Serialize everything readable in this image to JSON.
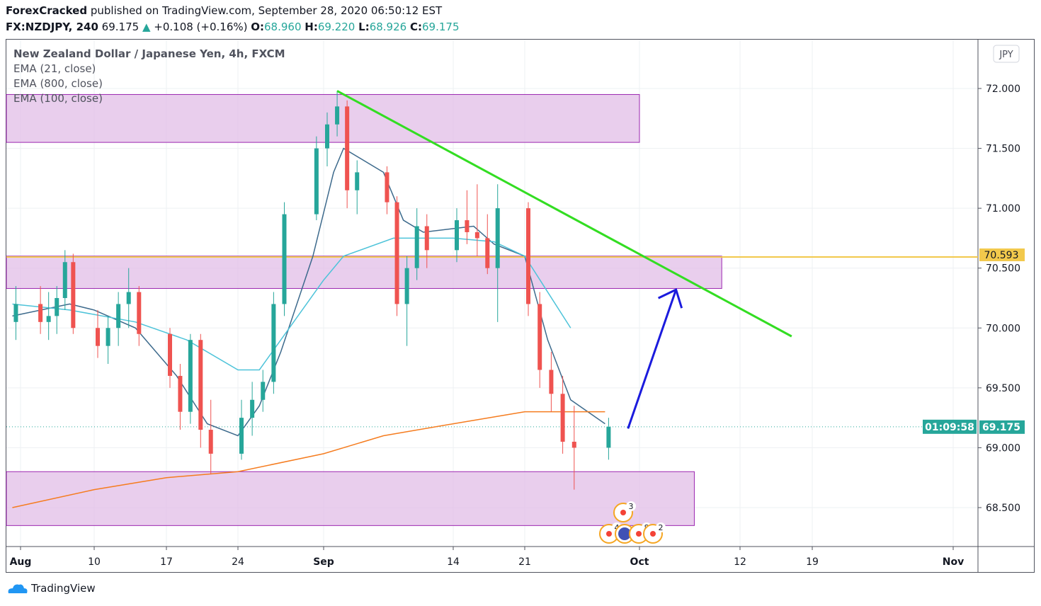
{
  "header": {
    "author": "ForexCracked",
    "published": "published on TradingView.com, September 28, 2020 06:50:12 EST",
    "symbol": "FX:NZDJPY, 240",
    "last": "69.175",
    "change": "+0.108 (+0.16%)",
    "o_label": "O:",
    "o": "68.960",
    "h_label": "H:",
    "h": "69.220",
    "l_label": "L:",
    "l": "68.926",
    "c_label": "C:",
    "c": "69.175",
    "up_arrow_icon": "triangle-up"
  },
  "legend": {
    "title": "New Zealand Dollar / Japanese Yen, 4h, FXCM",
    "ema21": "EMA (21, close)",
    "ema800": "EMA (800, close)",
    "ema100": "EMA (100, close)"
  },
  "footer": {
    "brand": "TradingView"
  },
  "chart_data": {
    "type": "candlestick",
    "currency": "JPY",
    "y_ticks": [
      "72.000",
      "71.500",
      "71.000",
      "70.500",
      "70.000",
      "69.500",
      "69.000",
      "68.500"
    ],
    "ylim": [
      68.3,
      72.4
    ],
    "x_ticks": [
      {
        "label": "Aug",
        "date": "2020-08-01"
      },
      {
        "label": "10",
        "date": "2020-08-10"
      },
      {
        "label": "17",
        "date": "2020-08-17"
      },
      {
        "label": "24",
        "date": "2020-08-24"
      },
      {
        "label": "Sep",
        "date": "2020-09-01"
      },
      {
        "label": "14",
        "date": "2020-09-14"
      },
      {
        "label": "21",
        "date": "2020-09-21"
      },
      {
        "label": "Oct",
        "date": "2020-10-01"
      },
      {
        "label": "12",
        "date": "2020-10-12"
      },
      {
        "label": "19",
        "date": "2020-10-19"
      },
      {
        "label": "Nov",
        "date": "2020-11-01"
      }
    ],
    "grid": true,
    "colors": {
      "up": "#26a69a",
      "down": "#ef5350",
      "ema21": "#3d6a8c",
      "ema100": "#4dc3d9",
      "ema800": "#f57c1f",
      "trendline": "#33dd22",
      "level": "#f2c94c",
      "arrow": "#1b1bdd",
      "zone": "#e1bee7",
      "zone_border": "#9c27b0"
    },
    "candles": [
      [
        "2020-07-31",
        70.05,
        70.35,
        69.9,
        70.2
      ],
      [
        "2020-08-03",
        70.2,
        70.35,
        69.95,
        70.05
      ],
      [
        "2020-08-04",
        70.05,
        70.3,
        69.9,
        70.1
      ],
      [
        "2020-08-05",
        70.1,
        70.35,
        69.95,
        70.25
      ],
      [
        "2020-08-06",
        70.25,
        70.65,
        70.15,
        70.55
      ],
      [
        "2020-08-07",
        70.55,
        70.62,
        69.95,
        70.0
      ],
      [
        "2020-08-10",
        70.0,
        70.15,
        69.75,
        69.85
      ],
      [
        "2020-08-11",
        69.85,
        70.1,
        69.7,
        70.0
      ],
      [
        "2020-08-12",
        70.0,
        70.3,
        69.85,
        70.2
      ],
      [
        "2020-08-13",
        70.2,
        70.5,
        70.0,
        70.3
      ],
      [
        "2020-08-14",
        70.3,
        70.35,
        69.85,
        69.95
      ],
      [
        "2020-08-17",
        69.95,
        70.0,
        69.5,
        69.6
      ],
      [
        "2020-08-18",
        69.6,
        69.7,
        69.15,
        69.3
      ],
      [
        "2020-08-19",
        69.3,
        69.95,
        69.2,
        69.9
      ],
      [
        "2020-08-20",
        69.9,
        69.95,
        69.0,
        69.15
      ],
      [
        "2020-08-21",
        69.15,
        69.4,
        68.78,
        68.95
      ],
      [
        "2020-08-24",
        68.95,
        69.4,
        68.9,
        69.25
      ],
      [
        "2020-08-25",
        69.25,
        69.55,
        69.1,
        69.4
      ],
      [
        "2020-08-26",
        69.4,
        69.65,
        69.3,
        69.55
      ],
      [
        "2020-08-27",
        69.55,
        70.3,
        69.45,
        70.2
      ],
      [
        "2020-08-28",
        70.2,
        71.05,
        70.1,
        70.95
      ],
      [
        "2020-08-31",
        70.95,
        71.6,
        70.9,
        71.5
      ],
      [
        "2020-09-01",
        71.5,
        71.8,
        71.35,
        71.7
      ],
      [
        "2020-09-02",
        71.7,
        71.98,
        71.6,
        71.85
      ],
      [
        "2020-09-03",
        71.85,
        71.9,
        71.0,
        71.15
      ],
      [
        "2020-09-04",
        71.15,
        71.4,
        70.95,
        71.3
      ],
      [
        "2020-09-07",
        71.3,
        71.35,
        70.95,
        71.05
      ],
      [
        "2020-09-08",
        71.05,
        71.1,
        70.1,
        70.2
      ],
      [
        "2020-09-09",
        70.2,
        70.6,
        69.85,
        70.5
      ],
      [
        "2020-09-10",
        70.5,
        71.0,
        70.4,
        70.85
      ],
      [
        "2020-09-11",
        70.85,
        70.95,
        70.5,
        70.65
      ],
      [
        "2020-09-14",
        70.65,
        71.0,
        70.55,
        70.9
      ],
      [
        "2020-09-15",
        70.9,
        71.15,
        70.7,
        70.8
      ],
      [
        "2020-09-16",
        70.8,
        71.2,
        70.6,
        70.75
      ],
      [
        "2020-09-17",
        70.75,
        70.95,
        70.45,
        70.5
      ],
      [
        "2020-09-18",
        70.5,
        71.2,
        70.05,
        71.0
      ],
      [
        "2020-09-21",
        71.0,
        71.05,
        70.1,
        70.2
      ],
      [
        "2020-09-22",
        70.2,
        70.3,
        69.5,
        69.65
      ],
      [
        "2020-09-23",
        69.65,
        69.8,
        69.3,
        69.45
      ],
      [
        "2020-09-24",
        69.45,
        69.6,
        68.95,
        69.05
      ],
      [
        "2020-09-25",
        69.05,
        69.35,
        68.65,
        69.0
      ],
      [
        "2020-09-28",
        69.0,
        69.25,
        68.9,
        69.175
      ]
    ],
    "series": [
      {
        "name": "EMA (21, close)",
        "color": "#3d6a8c",
        "points": [
          [
            "2020-07-31",
            70.1
          ],
          [
            "2020-08-07",
            70.2
          ],
          [
            "2020-08-10",
            70.15
          ],
          [
            "2020-08-14",
            70.0
          ],
          [
            "2020-08-18",
            69.6
          ],
          [
            "2020-08-21",
            69.2
          ],
          [
            "2020-08-24",
            69.1
          ],
          [
            "2020-08-26",
            69.35
          ],
          [
            "2020-08-28",
            69.8
          ],
          [
            "2020-08-31",
            70.6
          ],
          [
            "2020-09-02",
            71.3
          ],
          [
            "2020-09-03",
            71.5
          ],
          [
            "2020-09-07",
            71.3
          ],
          [
            "2020-09-09",
            70.9
          ],
          [
            "2020-09-11",
            70.8
          ],
          [
            "2020-09-16",
            70.85
          ],
          [
            "2020-09-18",
            70.7
          ],
          [
            "2020-09-21",
            70.6
          ],
          [
            "2020-09-23",
            69.9
          ],
          [
            "2020-09-25",
            69.4
          ],
          [
            "2020-09-28",
            69.2
          ]
        ]
      },
      {
        "name": "EMA (800, close)",
        "color": "#f57c1f",
        "points": [
          [
            "2020-07-31",
            68.5
          ],
          [
            "2020-08-10",
            68.65
          ],
          [
            "2020-08-17",
            68.75
          ],
          [
            "2020-08-24",
            68.8
          ],
          [
            "2020-09-01",
            68.95
          ],
          [
            "2020-09-07",
            69.1
          ],
          [
            "2020-09-14",
            69.2
          ],
          [
            "2020-09-21",
            69.3
          ],
          [
            "2020-09-28",
            69.3
          ]
        ]
      },
      {
        "name": "EMA (100, close)",
        "color": "#4dc3d9",
        "points": [
          [
            "2020-07-31",
            70.2
          ],
          [
            "2020-08-07",
            70.15
          ],
          [
            "2020-08-14",
            70.05
          ],
          [
            "2020-08-19",
            69.9
          ],
          [
            "2020-08-24",
            69.65
          ],
          [
            "2020-08-26",
            69.65
          ],
          [
            "2020-08-28",
            69.9
          ],
          [
            "2020-09-01",
            70.4
          ],
          [
            "2020-09-03",
            70.6
          ],
          [
            "2020-09-08",
            70.75
          ],
          [
            "2020-09-14",
            70.75
          ],
          [
            "2020-09-18",
            70.72
          ],
          [
            "2020-09-21",
            70.6
          ],
          [
            "2020-09-23",
            70.3
          ],
          [
            "2020-09-25",
            70.0
          ]
        ]
      }
    ],
    "zones": [
      {
        "from": "2020-07-30",
        "to": "2020-10-01",
        "low": 71.55,
        "high": 71.95
      },
      {
        "from": "2020-07-30",
        "to": "2020-10-10",
        "low": 70.33,
        "high": 70.6
      },
      {
        "from": "2020-07-30",
        "to": "2020-10-07",
        "low": 68.35,
        "high": 68.8
      }
    ],
    "trendline": {
      "from": [
        "2020-09-02",
        71.98
      ],
      "to": [
        "2020-10-17",
        69.93
      ]
    },
    "arrow": {
      "from": [
        "2020-09-30",
        69.16
      ],
      "to": [
        "2020-10-05",
        70.32
      ]
    },
    "level": {
      "value": 70.593,
      "label": "70.593"
    },
    "last_price": {
      "value": 69.175,
      "label": "69.175",
      "countdown": "01:09:58"
    },
    "events": {
      "count_labels": [
        "3",
        "4",
        "8",
        "2"
      ]
    }
  }
}
